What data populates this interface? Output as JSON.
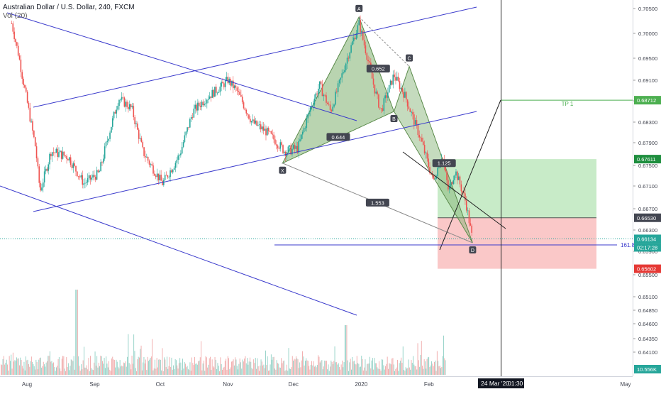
{
  "header": {
    "symbol_title": "Australian Dollar / U.S. Dollar, 240, FXCM",
    "volume_indicator": "Vol (20)"
  },
  "chart_data": {
    "type": "line",
    "title": "Australian Dollar / U.S. Dollar, 240, FXCM",
    "xlabel": "",
    "ylabel": "",
    "x_tick_labels": [
      "Aug",
      "Sep",
      "Oct",
      "Nov",
      "Dec",
      "2020",
      "Feb",
      "Mar",
      "May"
    ],
    "y_tick_labels": [
      "0.70500",
      "0.70000",
      "0.69500",
      "0.69100",
      "0.68700",
      "0.68300",
      "0.67900",
      "0.67500",
      "0.67100",
      "0.66700",
      "0.66300",
      "0.65900",
      "0.65500",
      "0.65100",
      "0.64850",
      "0.64600",
      "0.64350",
      "0.64100"
    ],
    "ylim": [
      0.64,
      0.7075
    ],
    "grid": false,
    "price_series": {
      "x": [
        "Jul 25",
        "Jul 28",
        "Aug 5",
        "Aug 7",
        "Aug 12",
        "Aug 20",
        "Aug 27",
        "Sep 3",
        "Sep 9",
        "Sep 12",
        "Sep 18",
        "Sep 23",
        "Oct 2",
        "Oct 10",
        "Oct 16",
        "Oct 22",
        "Oct 28",
        "Nov 1",
        "Nov 5",
        "Nov 12",
        "Nov 19",
        "Nov 27",
        "Dec 3",
        "Dec 9",
        "Dec 13",
        "Dec 18",
        "Dec 24",
        "Dec 31",
        "Jan 7",
        "Jan 10",
        "Jan 16",
        "Jan 21",
        "Jan 28",
        "Feb 3",
        "Feb 7",
        "Feb 10",
        "Feb 13",
        "Feb 18",
        "Feb 21"
      ],
      "close": [
        0.702,
        0.696,
        0.678,
        0.67,
        0.6775,
        0.6765,
        0.6715,
        0.6735,
        0.683,
        0.6875,
        0.6855,
        0.6775,
        0.6715,
        0.677,
        0.685,
        0.6875,
        0.6895,
        0.691,
        0.689,
        0.683,
        0.681,
        0.6775,
        0.678,
        0.686,
        0.69,
        0.685,
        0.693,
        0.702,
        0.6895,
        0.685,
        0.692,
        0.688,
        0.68,
        0.672,
        0.677,
        0.67,
        0.674,
        0.668,
        0.661
      ]
    },
    "harmonic_points": [
      {
        "label": "X",
        "x": "Nov 26",
        "y": 0.6754
      },
      {
        "label": "A",
        "x": "Dec 31",
        "y": 0.7033
      },
      {
        "label": "B",
        "x": "Jan 16",
        "y": 0.685
      },
      {
        "label": "C",
        "x": "Jan 23",
        "y": 0.6935
      },
      {
        "label": "D",
        "x": "Feb 21",
        "y": 0.6606
      }
    ],
    "harmonic_ratios": [
      "0.652",
      "0.644",
      "1.553",
      "1.125"
    ],
    "fib_level_label": "161.8",
    "target_label": "TP 1",
    "price_labels": [
      {
        "value": "0.68712",
        "color": "#4caf50"
      },
      {
        "value": "0.67611",
        "color": "#1e8e3e"
      },
      {
        "value": "0.66530",
        "color": "#434651"
      },
      {
        "value": "0.66134",
        "color": "#26a69a"
      },
      {
        "value": "02:17:28",
        "color": "#26a69a"
      },
      {
        "value": "0.65602",
        "color": "#e53935"
      },
      {
        "value": "10.556K",
        "color": "#26a69a"
      }
    ],
    "long_position": {
      "entry": 0.6653,
      "target": 0.67611,
      "stop": 0.65602
    },
    "tp1_price": 0.68712,
    "crosshair": {
      "date": "24 Mar '20",
      "time": "01:30"
    },
    "volume_last": "10.556K"
  },
  "colors": {
    "channel": "#3a3acc",
    "pattern_fill": "#7fb06f",
    "profit_zone": "#c8ebc8",
    "loss_zone": "#fac8c8",
    "bull_volume": "#8fd0c4",
    "bear_volume": "#f0a8a8"
  }
}
